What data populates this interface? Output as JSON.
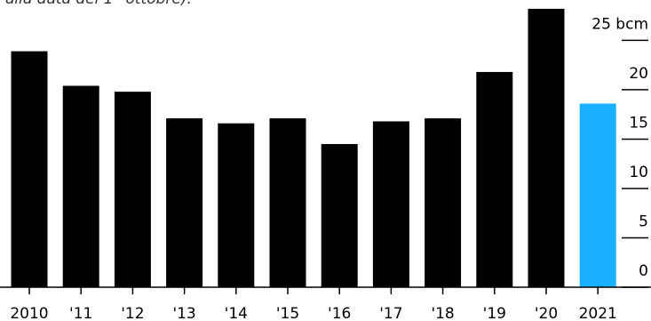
{
  "chart_data": {
    "type": "bar",
    "note": "alla data del 1° ottobre).",
    "categories": [
      "2010",
      "'11",
      "'12",
      "'13",
      "'14",
      "'15",
      "'16",
      "'17",
      "'18",
      "'19",
      "'20",
      "2021"
    ],
    "values": [
      23.9,
      20.4,
      19.8,
      17.1,
      16.6,
      17.1,
      14.5,
      16.8,
      17.1,
      21.8,
      28.2,
      18.6
    ],
    "colors": [
      "#000000",
      "#000000",
      "#000000",
      "#000000",
      "#000000",
      "#000000",
      "#000000",
      "#000000",
      "#000000",
      "#000000",
      "#000000",
      "#1ab0ff"
    ],
    "ylim": [
      0,
      29
    ],
    "yticks": [
      0,
      5,
      10,
      15,
      20,
      {
        "value": 25,
        "label": "25 bcm"
      }
    ]
  }
}
